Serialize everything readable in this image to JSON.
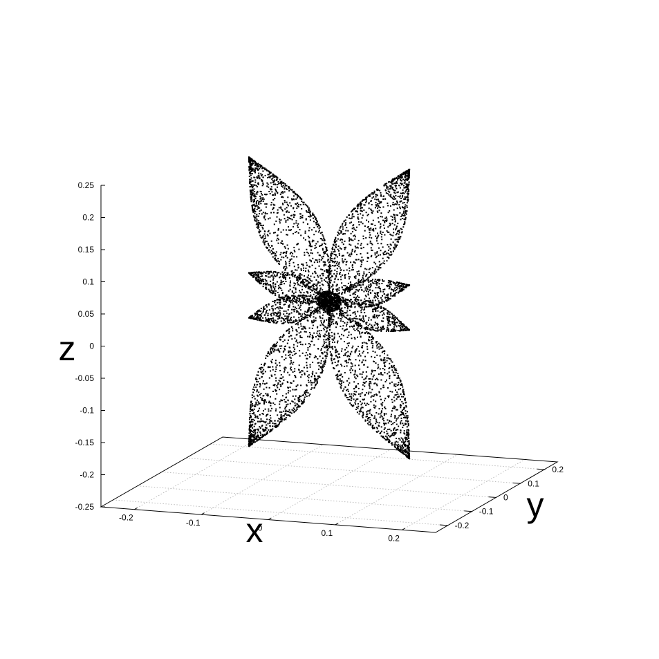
{
  "chart_data": {
    "type": "scatter",
    "projection": "3d",
    "title": "",
    "xlabel": "x",
    "ylabel": "y",
    "zlabel": "z",
    "xlim": [
      -0.25,
      0.25
    ],
    "ylim": [
      -0.25,
      0.25
    ],
    "zlim": [
      -0.25,
      0.25
    ],
    "grid": true,
    "legend": "none",
    "point_color": "#000000",
    "x_ticks": [
      {
        "value": -0.2,
        "label": "-0.2"
      },
      {
        "value": -0.1,
        "label": "-0.1"
      },
      {
        "value": 0,
        "label": "0"
      },
      {
        "value": 0.1,
        "label": "0.1"
      },
      {
        "value": 0.2,
        "label": "0.2"
      }
    ],
    "y_ticks": [
      {
        "value": -0.2,
        "label": "-0.2"
      },
      {
        "value": -0.1,
        "label": "-0.1"
      },
      {
        "value": 0,
        "label": "0"
      },
      {
        "value": 0.1,
        "label": "0.1"
      },
      {
        "value": 0.2,
        "label": "0.2"
      }
    ],
    "z_ticks": [
      {
        "value": -0.25,
        "label": "-0.25"
      },
      {
        "value": -0.2,
        "label": "-0.2"
      },
      {
        "value": -0.15,
        "label": "-0.15"
      },
      {
        "value": -0.1,
        "label": "-0.1"
      },
      {
        "value": -0.05,
        "label": "-0.05"
      },
      {
        "value": 0,
        "label": "0"
      },
      {
        "value": 0.05,
        "label": "0.05"
      },
      {
        "value": 0.1,
        "label": "0.1"
      },
      {
        "value": 0.15,
        "label": "0.15"
      },
      {
        "value": 0.2,
        "label": "0.2"
      },
      {
        "value": 0.25,
        "label": "0.25"
      }
    ],
    "surface": {
      "description_of_shape": "eight-lobed rose surface",
      "big_lobes": [
        {
          "x": -0.12,
          "z": 0.25
        },
        {
          "x": 0.12,
          "z": 0.25
        },
        {
          "x": -0.12,
          "z": -0.2
        },
        {
          "x": 0.12,
          "z": -0.2
        }
      ],
      "small_lobes": [
        {
          "x": -0.12,
          "z": 0.07
        },
        {
          "x": 0.12,
          "z": 0.07
        },
        {
          "x": -0.12,
          "z": 0.0
        },
        {
          "x": 0.12,
          "z": 0.0
        }
      ]
    }
  }
}
